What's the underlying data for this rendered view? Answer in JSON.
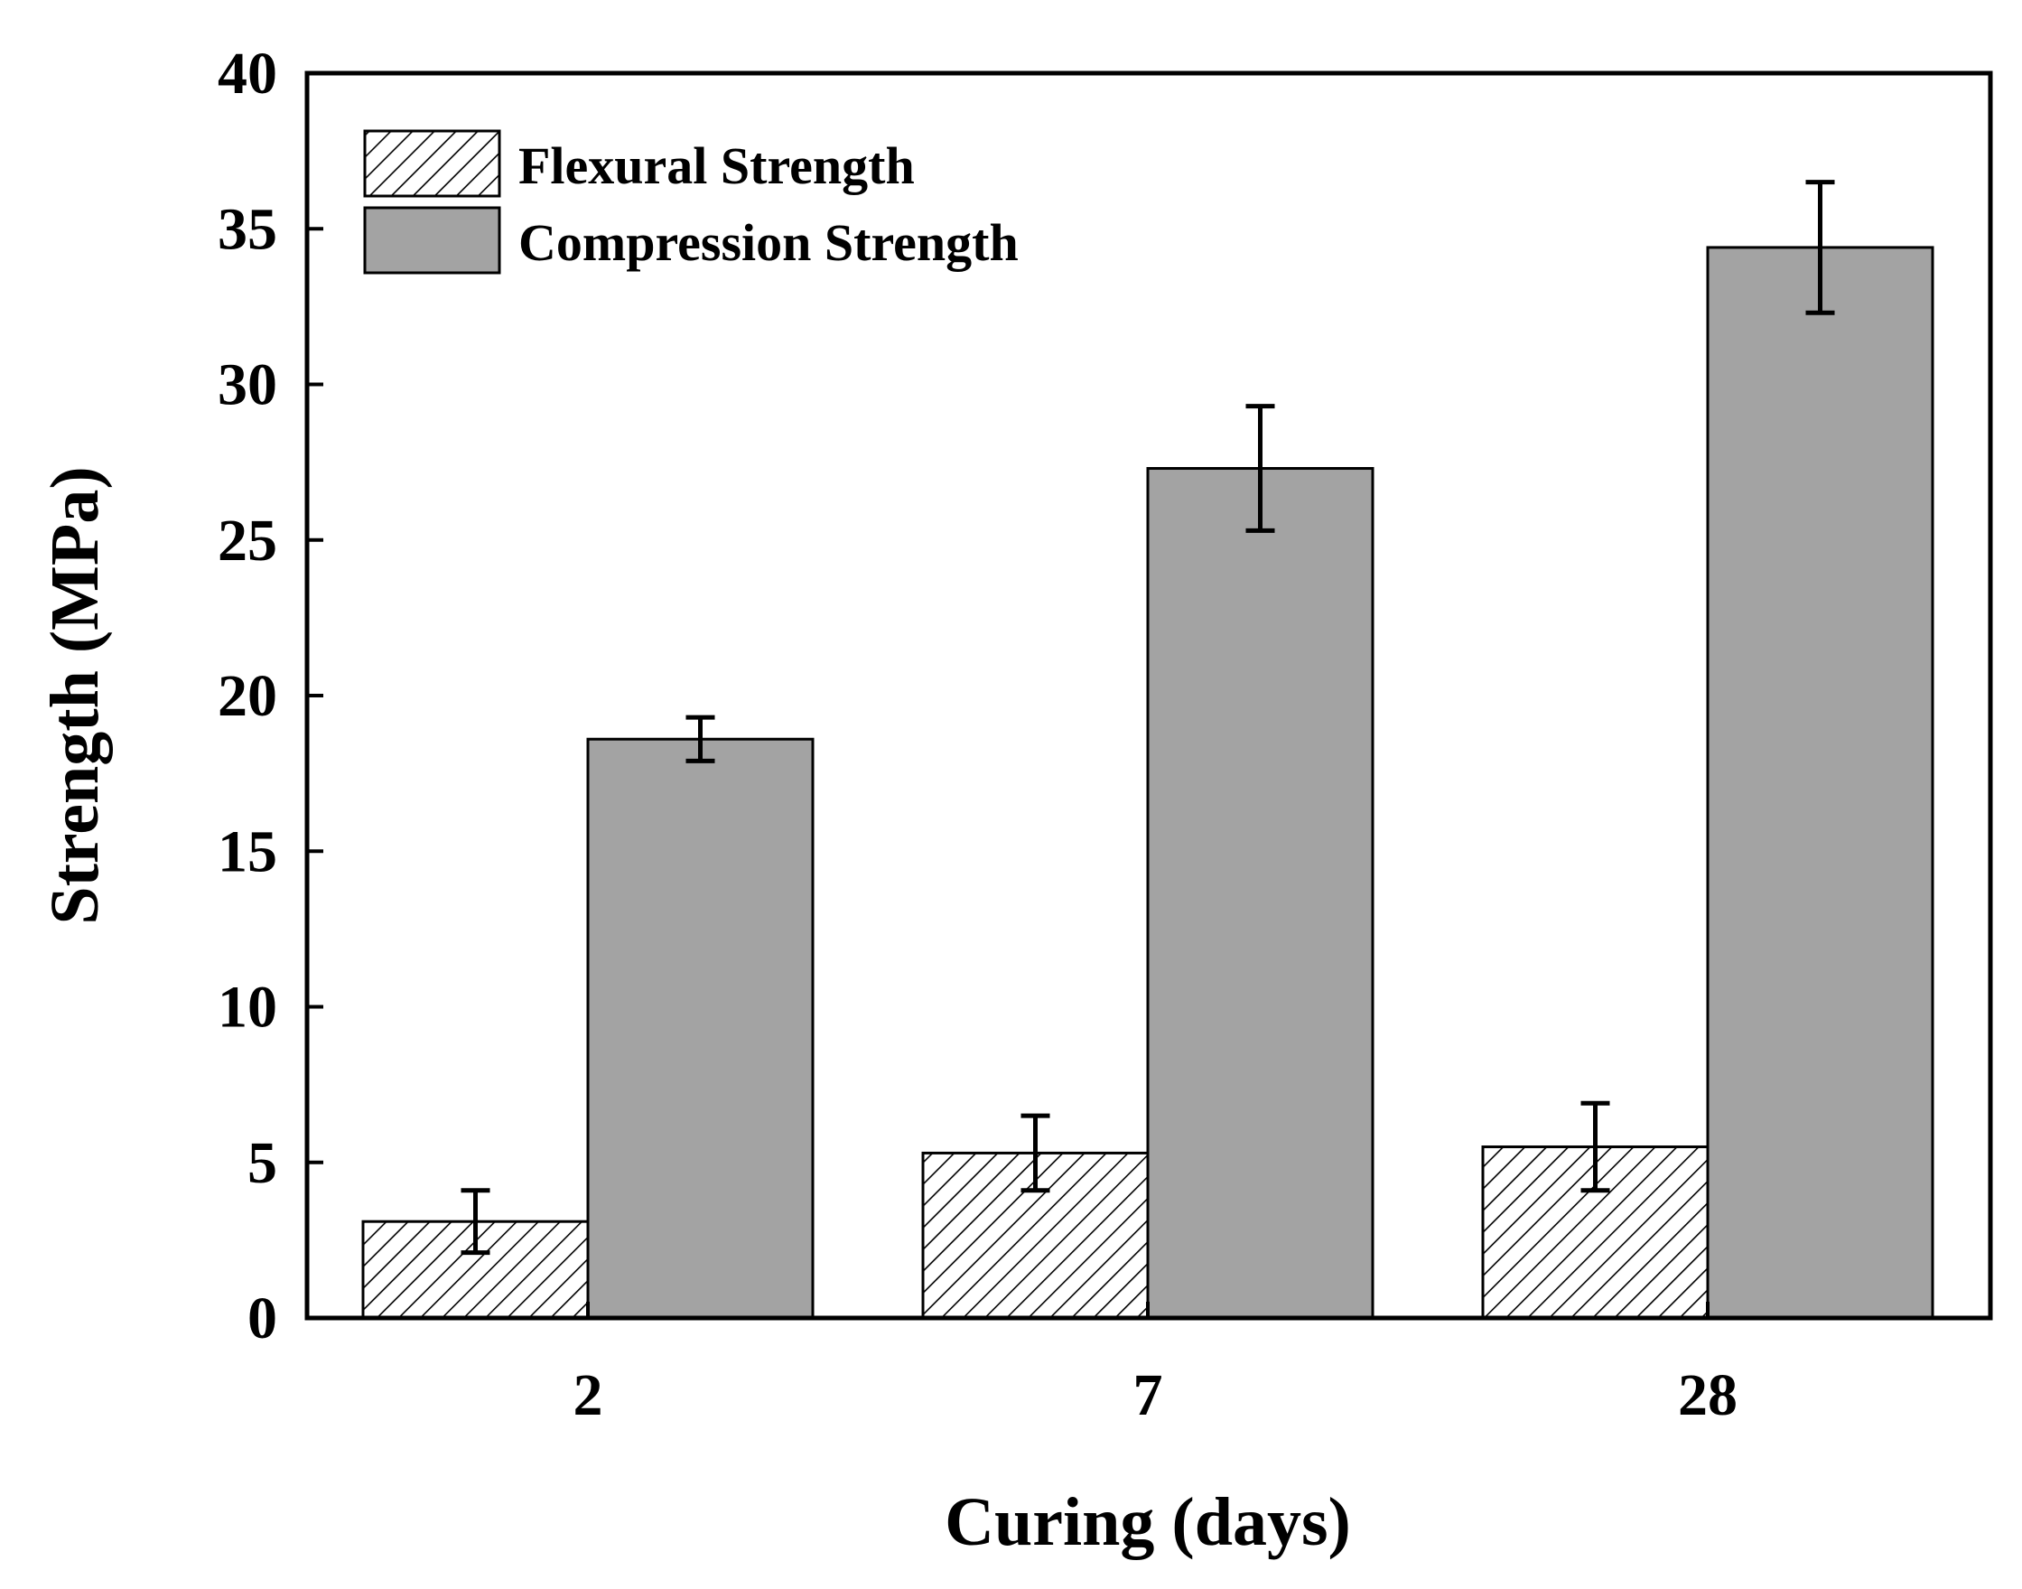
{
  "chart_data": {
    "type": "bar",
    "title": "",
    "xlabel": "Curing (days)",
    "ylabel": "Strength (MPa)",
    "categories": [
      "2",
      "7",
      "28"
    ],
    "ylim": [
      0,
      40
    ],
    "yticks": [
      "0",
      "5",
      "10",
      "15",
      "20",
      "25",
      "30",
      "35",
      "40"
    ],
    "grid": false,
    "legend_position": "top-left",
    "series": [
      {
        "name": "Flexural Strength",
        "pattern": "hatch",
        "fill": "#ffffff",
        "values": [
          3.1,
          5.3,
          5.5
        ],
        "errors": [
          1.0,
          1.2,
          1.4
        ]
      },
      {
        "name": "Compression Strength",
        "pattern": "solid",
        "fill": "#a3a3a3",
        "values": [
          18.6,
          27.3,
          34.4
        ],
        "errors": [
          0.7,
          2.0,
          2.1
        ]
      }
    ]
  }
}
